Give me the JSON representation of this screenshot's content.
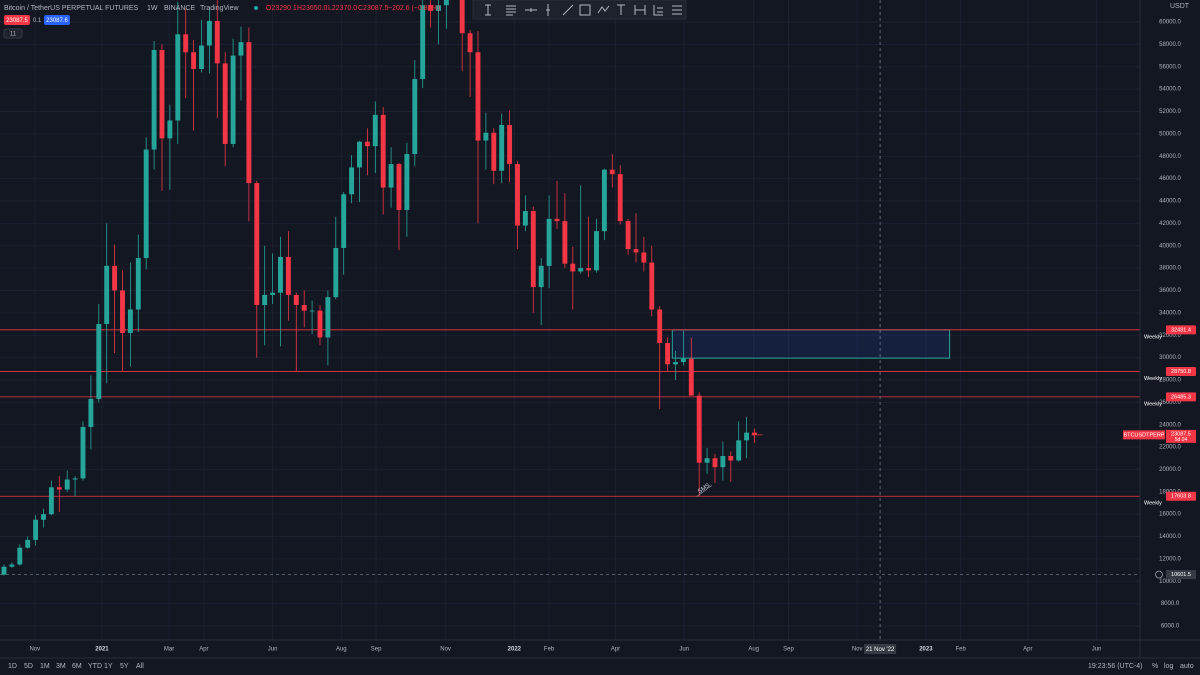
{
  "header": {
    "symbol": "Bitcoin / TetherUS PERPETUAL FUTURES",
    "interval": "1W",
    "exchange": "BINANCE",
    "source": "TradingView",
    "ohlc": [
      "O23290.1",
      "H23650.0",
      "L22370.0",
      "C23087.5"
    ],
    "change": "−202.6 (−0.87%)",
    "sell": "23087.5",
    "spread": "0.1",
    "buy": "23087.6",
    "indicators": "11",
    "currency": "USDT"
  },
  "footer": {
    "ranges": [
      "1D",
      "5D",
      "1M",
      "3M",
      "6M",
      "YTD",
      "1Y",
      "5Y",
      "All"
    ],
    "clock": "19:23:56 (UTC-4)",
    "percent": "%",
    "log": "log",
    "auto": "auto"
  },
  "chart_data": {
    "type": "candlestick",
    "symbol_label": "BTCUSDTPERP",
    "countdown": "5d 04",
    "open": [
      10600,
      11300,
      11500,
      13000,
      13700,
      15500,
      16000,
      18400,
      18200,
      19100,
      19200,
      23800,
      26300,
      33000,
      38200,
      36000,
      32200,
      34300,
      38900,
      48600,
      57500,
      49600,
      51200,
      58900,
      57300,
      55800,
      57900,
      60100,
      56300,
      49100,
      57000,
      58200,
      45600,
      34700,
      35600,
      35800,
      39000,
      35600,
      34700,
      34200,
      34200,
      31800,
      35400,
      39800,
      44600,
      47000,
      49300,
      48900,
      51700,
      45200,
      47300,
      43200,
      48200,
      54900,
      61500,
      61000,
      61500,
      63300,
      65500,
      59000,
      57300,
      49400,
      50100,
      46700,
      50800,
      47300,
      41800,
      43100,
      36300,
      38200,
      42400,
      42200,
      38400,
      37700,
      38000,
      37800,
      41300,
      46800,
      46400,
      42200,
      39700,
      39400,
      38500,
      34300,
      31300,
      29400,
      29600,
      29900,
      26600,
      20600,
      21000,
      20200,
      21200,
      20800,
      22600,
      23290.1
    ],
    "high": [
      11500,
      11700,
      13300,
      14000,
      15900,
      16500,
      19000,
      19400,
      19900,
      19400,
      24300,
      28400,
      34800,
      42000,
      40100,
      37800,
      38500,
      41000,
      49700,
      58300,
      58000,
      52600,
      61800,
      61200,
      58400,
      60200,
      61300,
      65000,
      57300,
      58500,
      59600,
      59500,
      45800,
      40000,
      39300,
      40800,
      41300,
      35800,
      36000,
      35100,
      34700,
      36000,
      42600,
      44800,
      48100,
      49400,
      50500,
      52900,
      52400,
      48800,
      47400,
      49200,
      56600,
      62000,
      67000,
      63700,
      64300,
      69000,
      66300,
      59300,
      59200,
      51900,
      50500,
      51800,
      52100,
      47600,
      44500,
      43500,
      38900,
      44500,
      45800,
      44700,
      39900,
      45400,
      42600,
      42400,
      46900,
      48200,
      47200,
      42400,
      42900,
      40800,
      40000,
      34600,
      31800,
      30600,
      32400,
      31800,
      26900,
      21900,
      21400,
      22500,
      21600,
      24300,
      24700,
      23650
    ],
    "low": [
      10500,
      11200,
      11400,
      12900,
      13200,
      14800,
      15900,
      16200,
      18000,
      17600,
      19000,
      21800,
      26000,
      27700,
      30400,
      28800,
      29200,
      32300,
      37900,
      46800,
      44900,
      45000,
      49100,
      53200,
      50300,
      55500,
      55400,
      51400,
      47100,
      48800,
      53000,
      42200,
      30000,
      31100,
      34800,
      31000,
      33300,
      28800,
      32700,
      32100,
      31100,
      29300,
      35200,
      37400,
      43800,
      43900,
      46300,
      46500,
      42800,
      43400,
      39600,
      40800,
      47100,
      54100,
      59500,
      58000,
      59400,
      62300,
      55600,
      53300,
      42000,
      46800,
      45500,
      45600,
      45700,
      39700,
      41300,
      34000,
      32900,
      36200,
      41500,
      38000,
      34300,
      37500,
      37200,
      37600,
      40500,
      45200,
      41900,
      39200,
      38500,
      37700,
      33700,
      25400,
      28700,
      28000,
      29300,
      26600,
      17600,
      19600,
      18800,
      19000,
      18900,
      20700,
      21000,
      22370
    ],
    "close": [
      11300,
      11500,
      13000,
      13700,
      15500,
      16000,
      18400,
      18200,
      19100,
      19200,
      23800,
      26300,
      33000,
      38200,
      36000,
      32200,
      34300,
      38900,
      48600,
      57500,
      49600,
      51200,
      58900,
      57300,
      55800,
      57900,
      60100,
      56300,
      49100,
      57000,
      58200,
      45600,
      34700,
      35600,
      35800,
      39000,
      35600,
      34700,
      34200,
      34200,
      31800,
      35400,
      39800,
      44600,
      47000,
      49300,
      48900,
      51700,
      45200,
      47300,
      43200,
      48200,
      54900,
      61500,
      61000,
      61500,
      63300,
      65500,
      59000,
      57300,
      49400,
      50100,
      46700,
      50800,
      47300,
      41800,
      43100,
      36300,
      38200,
      42400,
      42200,
      38400,
      37700,
      38000,
      37800,
      41300,
      46800,
      46400,
      42200,
      39700,
      39400,
      38500,
      34300,
      31300,
      29400,
      29600,
      29900,
      26600,
      20600,
      21000,
      20200,
      21200,
      20800,
      22600,
      23290.1,
      23087.5
    ],
    "xlim": [
      -0.506,
      143.8
    ],
    "ylim": [
      4750,
      61970
    ],
    "yticks": [
      {
        "value": 6000,
        "label": "6000.0"
      },
      {
        "value": 8000,
        "label": "8000.0"
      },
      {
        "value": 10000,
        "label": "10000.0"
      },
      {
        "value": 12000,
        "label": "12000.0"
      },
      {
        "value": 14000,
        "label": "14000.0"
      },
      {
        "value": 16000,
        "label": "16000.0"
      },
      {
        "value": 18000,
        "label": "18000.0"
      },
      {
        "value": 20000,
        "label": "20000.0"
      },
      {
        "value": 22000,
        "label": "22000.0"
      },
      {
        "value": 24000,
        "label": "24000.0"
      },
      {
        "value": 26000,
        "label": "26000.0"
      },
      {
        "value": 28000,
        "label": "28000.0"
      },
      {
        "value": 30000,
        "label": "30000.0"
      },
      {
        "value": 32000,
        "label": "32000.0"
      },
      {
        "value": 34000,
        "label": "34000.0"
      },
      {
        "value": 36000,
        "label": "36000.0"
      },
      {
        "value": 38000,
        "label": "38000.0"
      },
      {
        "value": 40000,
        "label": "40000.0"
      },
      {
        "value": 42000,
        "label": "42000.0"
      },
      {
        "value": 44000,
        "label": "44000.0"
      },
      {
        "value": 46000,
        "label": "46000.0"
      },
      {
        "value": 48000,
        "label": "48000.0"
      },
      {
        "value": 50000,
        "label": "50000.0"
      },
      {
        "value": 52000,
        "label": "52000.0"
      },
      {
        "value": 54000,
        "label": "54000.0"
      },
      {
        "value": 56000,
        "label": "56000.0"
      },
      {
        "value": 58000,
        "label": "58000.0"
      },
      {
        "value": 60000,
        "label": "60000.0"
      }
    ],
    "xticks": [
      {
        "value": 3.9,
        "label": "Nov"
      },
      {
        "value": 12.4,
        "label": "2021"
      },
      {
        "value": 20.9,
        "label": "Mar"
      },
      {
        "value": 25.3,
        "label": "Apr"
      },
      {
        "value": 34,
        "label": "Jun"
      },
      {
        "value": 42.7,
        "label": "Aug"
      },
      {
        "value": 47.1,
        "label": "Sep"
      },
      {
        "value": 55.9,
        "label": "Nov"
      },
      {
        "value": 64.6,
        "label": "2022"
      },
      {
        "value": 69,
        "label": "Feb"
      },
      {
        "value": 77.4,
        "label": "Apr"
      },
      {
        "value": 86.1,
        "label": "Jun"
      },
      {
        "value": 94.9,
        "label": "Aug"
      },
      {
        "value": 99.3,
        "label": "Sep"
      },
      {
        "value": 108,
        "label": "Nov"
      },
      {
        "value": 116.7,
        "label": "2023"
      },
      {
        "value": 121.1,
        "label": "Feb"
      },
      {
        "value": 129.6,
        "label": "Apr"
      },
      {
        "value": 138.3,
        "label": "Jun"
      }
    ],
    "levels": [
      {
        "price": 32481.4,
        "text": "Weekly"
      },
      {
        "price": 28750.8,
        "text": "Weekly"
      },
      {
        "price": 26485.3,
        "text": "Weekly"
      },
      {
        "price": 17603.8,
        "text": "Weekly"
      }
    ],
    "zone": {
      "start": 84.6,
      "end": 119.7,
      "top": 32481.4,
      "bottom": 29950
    },
    "crosshair": {
      "x": 110.9,
      "x_label": "21 Nov '22",
      "price": 10601.5
    },
    "annotations": [
      {
        "text": "SMS",
        "x": 88.6,
        "y": 18300
      }
    ],
    "colors": {
      "up": "#26a69a",
      "down": "#f23645",
      "level": "#f23645",
      "zone": "#26a69a",
      "last": "#f23645"
    },
    "grid": true,
    "log": false
  }
}
